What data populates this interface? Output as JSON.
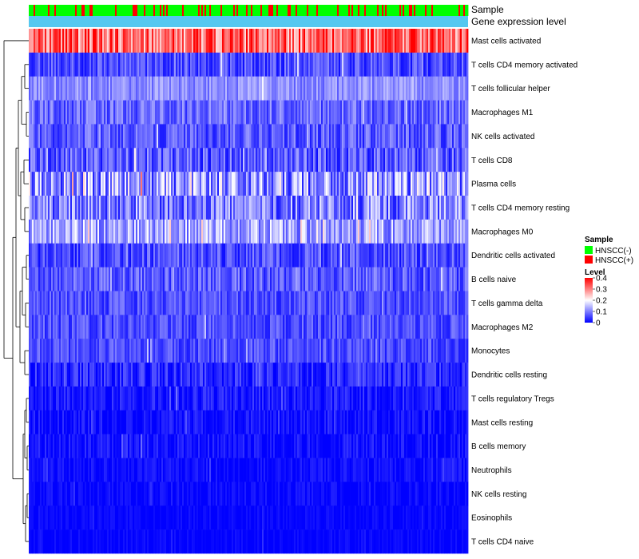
{
  "chart_data": {
    "type": "heatmap",
    "annotation_labels": [
      "Sample",
      "Gene expression level"
    ],
    "rows": [
      {
        "name": "Mast cells activated",
        "mean": 0.32,
        "spread": 0.1
      },
      {
        "name": "T cells CD4 memory activated",
        "mean": 0.06,
        "spread": 0.05
      },
      {
        "name": "T cells follicular helper",
        "mean": 0.11,
        "spread": 0.04
      },
      {
        "name": "Macrophages M1",
        "mean": 0.08,
        "spread": 0.05
      },
      {
        "name": "NK cells activated",
        "mean": 0.07,
        "spread": 0.05
      },
      {
        "name": "T cells CD8",
        "mean": 0.07,
        "spread": 0.06
      },
      {
        "name": "Plasma cells",
        "mean": 0.12,
        "spread": 0.1
      },
      {
        "name": "T cells CD4 memory resting",
        "mean": 0.1,
        "spread": 0.08
      },
      {
        "name": "Macrophages M0",
        "mean": 0.13,
        "spread": 0.07
      },
      {
        "name": "Dendritic cells activated",
        "mean": 0.06,
        "spread": 0.05
      },
      {
        "name": "B cells naive",
        "mean": 0.07,
        "spread": 0.05
      },
      {
        "name": "T cells gamma delta",
        "mean": 0.06,
        "spread": 0.04
      },
      {
        "name": "Macrophages M2",
        "mean": 0.06,
        "spread": 0.04
      },
      {
        "name": "Monocytes",
        "mean": 0.06,
        "spread": 0.04
      },
      {
        "name": "Dendritic cells resting",
        "mean": 0.03,
        "spread": 0.04
      },
      {
        "name": "T cells regulatory  Tregs",
        "mean": 0.02,
        "spread": 0.03
      },
      {
        "name": "Mast cells resting",
        "mean": 0.01,
        "spread": 0.03
      },
      {
        "name": "B cells memory",
        "mean": 0.01,
        "spread": 0.03
      },
      {
        "name": "Neutrophils",
        "mean": 0.01,
        "spread": 0.02
      },
      {
        "name": "NK cells resting",
        "mean": 0.005,
        "spread": 0.02
      },
      {
        "name": "Eosinophils",
        "mean": 0.003,
        "spread": 0.015
      },
      {
        "name": "T cells CD4 naive",
        "mean": 0.002,
        "spread": 0.015
      }
    ],
    "n_samples": 275,
    "sample_positive_fraction": 0.18,
    "legend": {
      "sample_title": "Sample",
      "sample_items": [
        {
          "label": "HNSCC(-)",
          "color": "#00ff00"
        },
        {
          "label": "HNSCC(+)",
          "color": "#ff0000"
        }
      ],
      "level_title": "Level",
      "level_ticks": [
        "0.4",
        "0.3",
        "0.2",
        "0.1",
        "0"
      ],
      "level_range": [
        0,
        0.4
      ]
    },
    "colors": {
      "low": "#0000ff",
      "mid": "#ffffff",
      "high": "#ff0000",
      "expression_bar": "#55c8f0"
    }
  }
}
